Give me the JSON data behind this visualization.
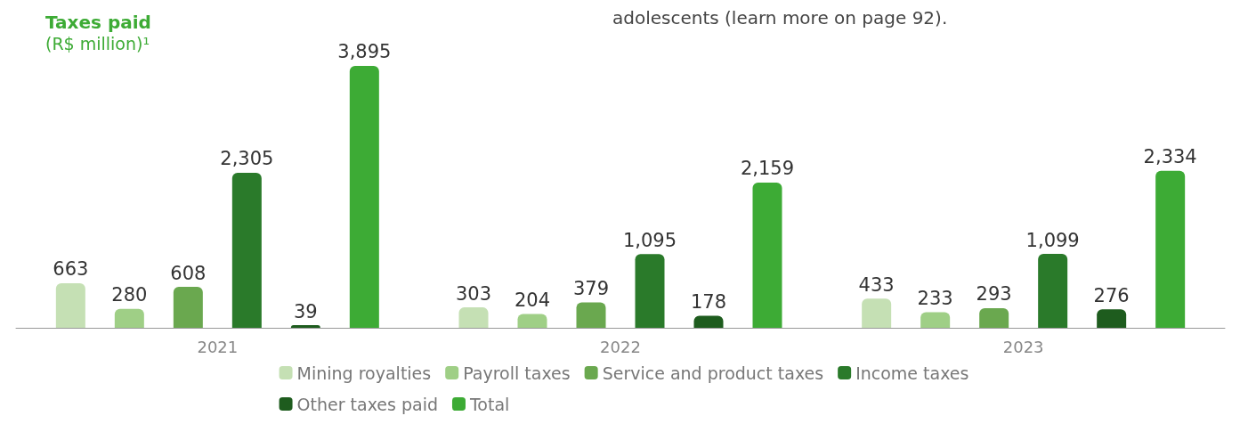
{
  "chart_data": {
    "type": "bar",
    "title": "Taxes paid",
    "subtitle": "(R$ million)¹",
    "annotations": [
      "adolescents (learn more on page 92)."
    ],
    "categories": [
      "2021",
      "2022",
      "2023"
    ],
    "series": [
      {
        "name": "Mining royalties",
        "color": "#c5e0b4",
        "values": [
          663,
          303,
          433
        ],
        "value_labels": [
          "663",
          "303",
          "433"
        ]
      },
      {
        "name": "Payroll taxes",
        "color": "#9fcf86",
        "values": [
          280,
          204,
          233
        ],
        "value_labels": [
          "280",
          "204",
          "233"
        ]
      },
      {
        "name": "Service and product taxes",
        "color": "#6aa84f",
        "values": [
          608,
          379,
          293
        ],
        "value_labels": [
          "608",
          "379",
          "293"
        ]
      },
      {
        "name": "Income taxes",
        "color": "#2a7a2a",
        "values": [
          2305,
          1095,
          1099
        ],
        "value_labels": [
          "2,305",
          "1,095",
          "1,099"
        ]
      },
      {
        "name": "Other taxes paid",
        "color": "#1e5c1e",
        "values": [
          39,
          178,
          276
        ],
        "value_labels": [
          "39",
          "178",
          "276"
        ]
      },
      {
        "name": "Total",
        "color": "#3dab35",
        "values": [
          3895,
          2159,
          2334
        ],
        "value_labels": [
          "3,895",
          "2,159",
          "2,334"
        ]
      }
    ],
    "grid": false,
    "legend": "bottom"
  }
}
